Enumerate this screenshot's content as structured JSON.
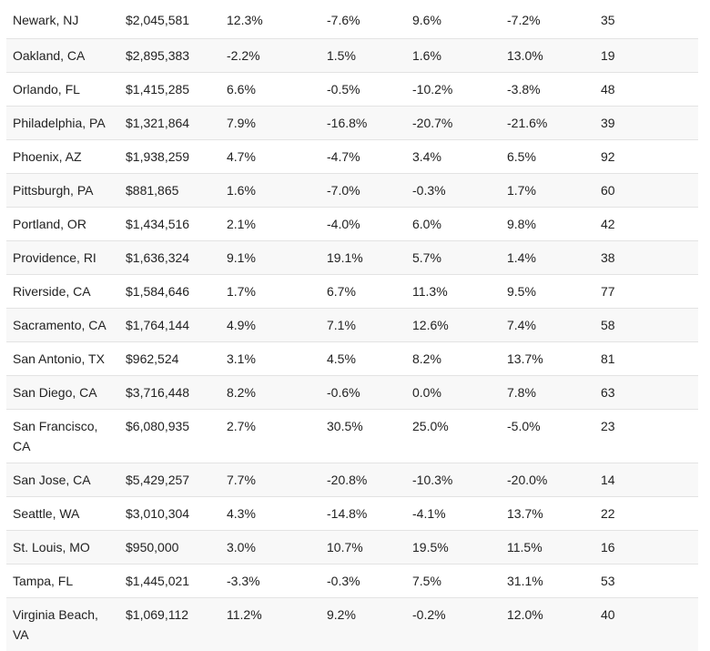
{
  "table": {
    "rows": [
      [
        "Newark, NJ",
        "$2,045,581",
        "12.3%",
        "-7.6%",
        "9.6%",
        "-7.2%",
        "35"
      ],
      [
        "Oakland, CA",
        "$2,895,383",
        "-2.2%",
        "1.5%",
        "1.6%",
        "13.0%",
        "19"
      ],
      [
        "Orlando, FL",
        "$1,415,285",
        "6.6%",
        "-0.5%",
        "-10.2%",
        "-3.8%",
        "48"
      ],
      [
        "Philadelphia, PA",
        "$1,321,864",
        "7.9%",
        "-16.8%",
        "-20.7%",
        "-21.6%",
        "39"
      ],
      [
        "Phoenix, AZ",
        "$1,938,259",
        "4.7%",
        "-4.7%",
        "3.4%",
        "6.5%",
        "92"
      ],
      [
        "Pittsburgh, PA",
        "$881,865",
        "1.6%",
        "-7.0%",
        "-0.3%",
        "1.7%",
        "60"
      ],
      [
        "Portland, OR",
        "$1,434,516",
        "2.1%",
        "-4.0%",
        "6.0%",
        "9.8%",
        "42"
      ],
      [
        "Providence, RI",
        "$1,636,324",
        "9.1%",
        "19.1%",
        "5.7%",
        "1.4%",
        "38"
      ],
      [
        "Riverside, CA",
        "$1,584,646",
        "1.7%",
        "6.7%",
        "11.3%",
        "9.5%",
        "77"
      ],
      [
        "Sacramento, CA",
        "$1,764,144",
        "4.9%",
        "7.1%",
        "12.6%",
        "7.4%",
        "58"
      ],
      [
        "San Antonio, TX",
        "$962,524",
        "3.1%",
        "4.5%",
        "8.2%",
        "13.7%",
        "81"
      ],
      [
        "San Diego, CA",
        "$3,716,448",
        "8.2%",
        "-0.6%",
        "0.0%",
        "7.8%",
        "63"
      ],
      [
        "San Francisco, CA",
        "$6,080,935",
        "2.7%",
        "30.5%",
        "25.0%",
        "-5.0%",
        "23"
      ],
      [
        "San Jose, CA",
        "$5,429,257",
        "7.7%",
        "-20.8%",
        "-10.3%",
        "-20.0%",
        "14"
      ],
      [
        "Seattle, WA",
        "$3,010,304",
        "4.3%",
        "-14.8%",
        "-4.1%",
        "13.7%",
        "22"
      ],
      [
        "St. Louis, MO",
        "$950,000",
        "3.0%",
        "10.7%",
        "19.5%",
        "11.5%",
        "16"
      ],
      [
        "Tampa, FL",
        "$1,445,021",
        "-3.3%",
        "-0.3%",
        "7.5%",
        "31.1%",
        "53"
      ],
      [
        "Virginia Beach, VA",
        "$1,069,112",
        "11.2%",
        "9.2%",
        "-0.2%",
        "12.0%",
        "40"
      ]
    ]
  }
}
